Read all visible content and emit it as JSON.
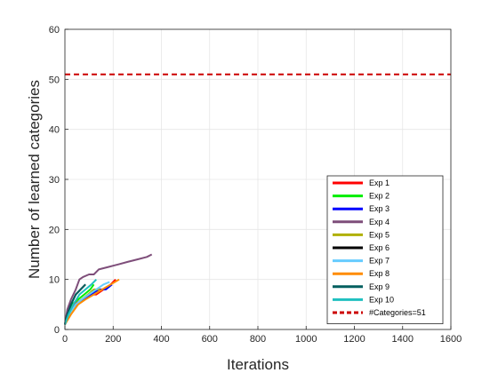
{
  "chart_data": {
    "type": "line",
    "title": "",
    "xlabel": "Iterations",
    "ylabel": "Number of learned categories",
    "xlim": [
      0,
      1600
    ],
    "ylim": [
      0,
      60
    ],
    "xticks": [
      0,
      200,
      400,
      600,
      800,
      1000,
      1200,
      1400,
      1600
    ],
    "yticks": [
      0,
      10,
      20,
      30,
      40,
      50,
      60
    ],
    "xtick_labels": [
      "0",
      "200",
      "400",
      "600",
      "800",
      "1000",
      "1200",
      "1400",
      "1600"
    ],
    "ytick_labels": [
      "0",
      "10",
      "20",
      "30",
      "40",
      "50",
      "60"
    ],
    "grid": true,
    "legend_position": "bottom-right",
    "series": [
      {
        "name": "Exp 1",
        "color": "#ff0000",
        "x": [
          0,
          15,
          40,
          70,
          100,
          130,
          160,
          190,
          210
        ],
        "y": [
          1,
          3,
          5,
          6,
          7,
          7,
          8,
          9,
          10
        ]
      },
      {
        "name": "Exp 2",
        "color": "#00ee00",
        "x": [
          0,
          10,
          30,
          55,
          80,
          105,
          120
        ],
        "y": [
          1,
          3,
          5,
          6,
          7,
          8,
          9
        ]
      },
      {
        "name": "Exp 3",
        "color": "#0000ff",
        "x": [
          0,
          20,
          50,
          80,
          110,
          140,
          170,
          195
        ],
        "y": [
          1,
          3,
          5,
          6,
          7,
          8,
          8,
          9
        ]
      },
      {
        "name": "Exp 4",
        "color": "#7e4e7a",
        "x": [
          0,
          10,
          25,
          45,
          60,
          75,
          100,
          120,
          140,
          180,
          220,
          260,
          300,
          340,
          360
        ],
        "y": [
          1,
          4,
          6,
          8,
          10,
          10.5,
          11,
          11,
          12,
          12.5,
          13,
          13.5,
          14,
          14.5,
          15
        ]
      },
      {
        "name": "Exp 5",
        "color": "#b0b000",
        "x": [
          0,
          20,
          45,
          70,
          95,
          120,
          145
        ],
        "y": [
          1,
          3,
          5,
          6,
          7,
          8,
          8
        ]
      },
      {
        "name": "Exp 6",
        "color": "#000000",
        "x": [
          0,
          10,
          25,
          45,
          65,
          85
        ],
        "y": [
          1,
          3,
          5,
          7,
          8,
          9
        ]
      },
      {
        "name": "Exp 7",
        "color": "#66ccff",
        "x": [
          0,
          20,
          45,
          70,
          100,
          130,
          160,
          185
        ],
        "y": [
          1,
          3,
          5,
          6,
          7,
          8,
          9,
          9.5
        ]
      },
      {
        "name": "Exp 8",
        "color": "#ff8c00",
        "x": [
          0,
          25,
          55,
          85,
          120,
          155,
          190,
          225
        ],
        "y": [
          1,
          3,
          5,
          6,
          7,
          8,
          9,
          10
        ]
      },
      {
        "name": "Exp 9",
        "color": "#005f5f",
        "x": [
          0,
          10,
          25,
          45,
          65,
          85
        ],
        "y": [
          1,
          3,
          5,
          7,
          8,
          9
        ]
      },
      {
        "name": "Exp 10",
        "color": "#20c0c0",
        "x": [
          0,
          15,
          35,
          60,
          85,
          110,
          130
        ],
        "y": [
          1,
          3,
          5,
          7,
          8,
          9,
          10
        ]
      }
    ],
    "reference_line": {
      "name": "#Categories=51",
      "y": 51,
      "color": "#cc0000",
      "style": "dashed"
    }
  }
}
